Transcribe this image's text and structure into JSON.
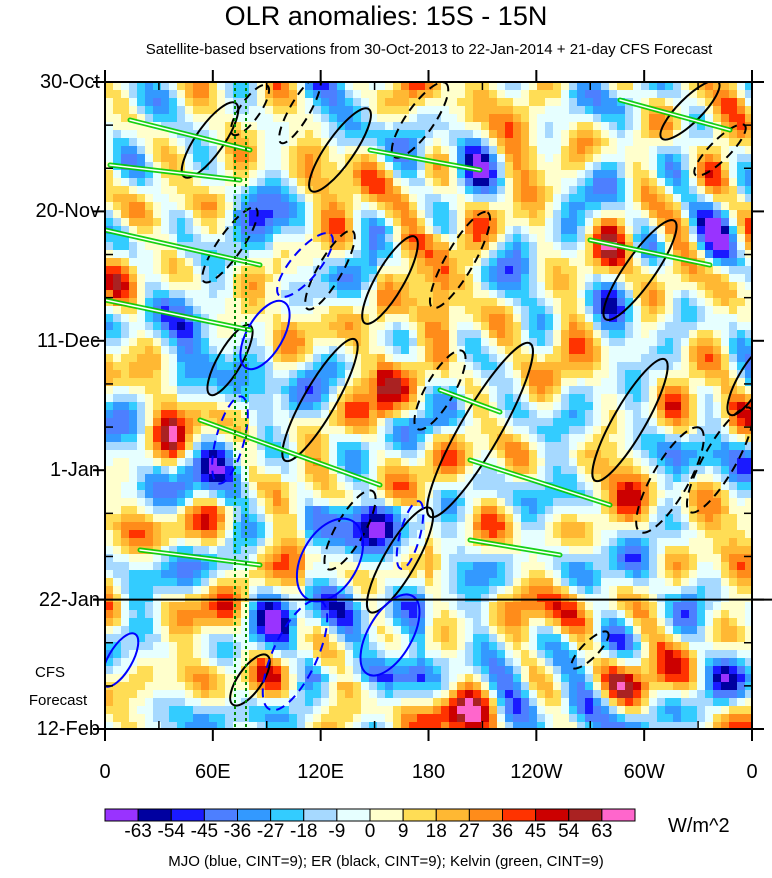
{
  "chart_data": {
    "type": "heatmap",
    "title": "OLR anomalies: 15S - 15N",
    "subtitle": "Satellite-based bservations from 30-Oct-2013 to 22-Jan-2014 + 21-day CFS Forecast",
    "x_ticks": [
      "0",
      "60E",
      "120E",
      "180",
      "120W",
      "60W",
      "0"
    ],
    "x_range": [
      0,
      360
    ],
    "y_ticks": [
      "30-Oct",
      "20-Nov",
      "11-Dec",
      "1-Jan",
      "22-Jan",
      "12-Feb"
    ],
    "forecast_start": "22-Jan",
    "forecast_label": [
      "CFS",
      "Forecast"
    ],
    "colorbar": {
      "labels": [
        "-63",
        "-54",
        "-45",
        "-36",
        "-27",
        "-18",
        "-9",
        "0",
        "9",
        "18",
        "27",
        "36",
        "45",
        "54",
        "63"
      ],
      "colors": [
        "#9933ff",
        "#0000a0",
        "#1a1aff",
        "#4d7fff",
        "#3399ff",
        "#33ccff",
        "#a6d9ff",
        "#e6ffff",
        "#ffffcc",
        "#ffdd55",
        "#ffb833",
        "#ff8c1a",
        "#ff3300",
        "#cc0000",
        "#aa2222",
        "#ff66cc"
      ],
      "units": "W/m^2"
    },
    "overlays": [
      {
        "name": "MJO",
        "color": "#0000ff"
      },
      {
        "name": "ER",
        "color": "#000000"
      },
      {
        "name": "Kelvin",
        "color": "#00cc00"
      }
    ],
    "caption": "MJO (blue, CINT=9); ER (black, CINT=9); Kelvin (green, CINT=9)"
  }
}
